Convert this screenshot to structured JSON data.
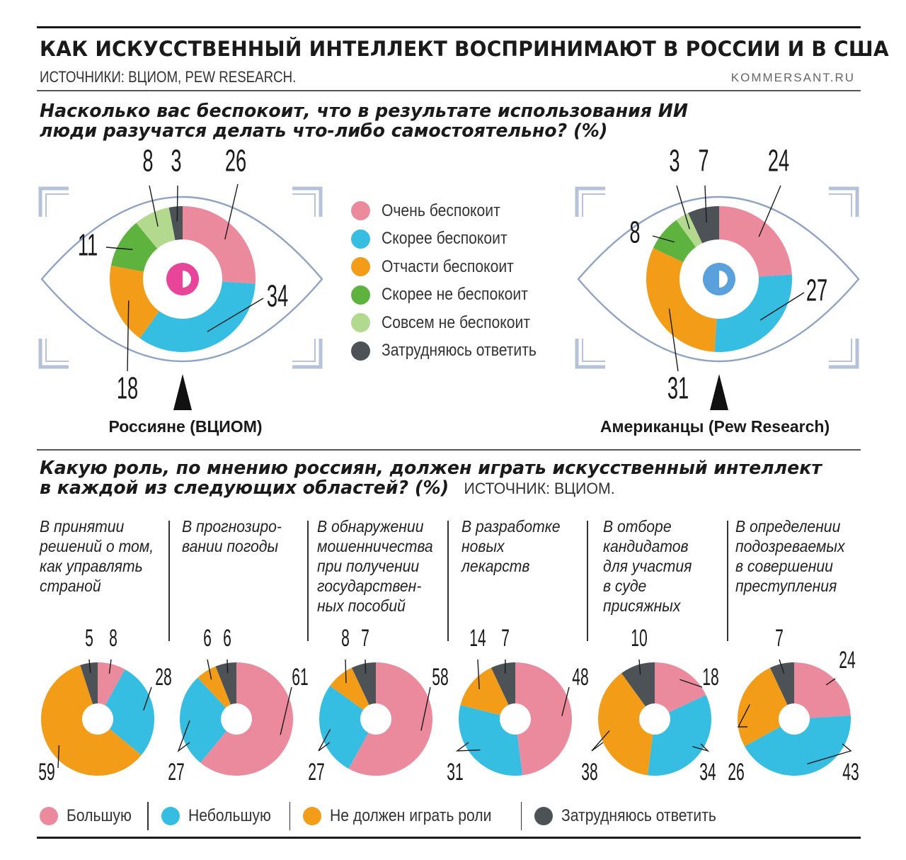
{
  "header": {
    "title": "КАК ИСКУССТВЕННЫЙ ИНТЕЛЛЕКТ ВОСПРИНИМАЮТ В РОССИИ И В США",
    "sources": "ИСТОЧНИКИ: ВЦИОМ, PEW RESEARCH.",
    "site": "KOMMERSANT.RU"
  },
  "section1": {
    "question_line1": "Насколько вас беспокоит, что в результате использования ИИ",
    "question_line2": "люди разучатся делать что-либо самостоятельно? (%)"
  },
  "section2": {
    "question_line1": "Какую роль, по мнению россиян, должен играть искусственный интеллект",
    "question_line2": "в каждой из следующих областей? (%)",
    "source": "ИСТОЧНИК: ВЦИОМ."
  },
  "colors": {
    "pink": "#ea8a9c",
    "blue": "#36bde2",
    "orange": "#f29c17",
    "green": "#5db33d",
    "lightgreen": "#b3d98e",
    "gray": "#4d5257",
    "eye_outline": "#8fa3c4",
    "frame": "#b5c2da",
    "pupil_ru": "#e8449a",
    "pupil_us": "#5aa0dc"
  },
  "legend1": [
    {
      "label": "Очень беспокоит",
      "color": "#ea8a9c"
    },
    {
      "label": "Скорее беспокоит",
      "color": "#36bde2"
    },
    {
      "label": "Отчасти беспокоит",
      "color": "#f29c17"
    },
    {
      "label": "Скорее не беспокоит",
      "color": "#5db33d"
    },
    {
      "label": "Совсем не беспокоит",
      "color": "#b3d98e"
    },
    {
      "label": "Затрудняюсь ответить",
      "color": "#4d5257"
    }
  ],
  "legend2": [
    {
      "label": "Большую",
      "color": "#ea8a9c"
    },
    {
      "label": "Небольшую",
      "color": "#36bde2"
    },
    {
      "label": "Не должен играть роли",
      "color": "#f29c17"
    },
    {
      "label": "Затрудняюсь ответить",
      "color": "#4d5257"
    }
  ],
  "chart_data": [
    {
      "type": "pie",
      "title": "Россияне (ВЦИОМ)",
      "categories": [
        "Очень беспокоит",
        "Скорее беспокоит",
        "Отчасти беспокоит",
        "Скорее не беспокоит",
        "Совсем не беспокоит",
        "Затрудняюсь ответить"
      ],
      "values": [
        26,
        34,
        18,
        11,
        8,
        3
      ]
    },
    {
      "type": "pie",
      "title": "Американцы (Pew Research)",
      "categories": [
        "Очень беспокоит",
        "Скорее беспокоит",
        "Отчасти беспокоит",
        "Скорее не беспокоит",
        "Совсем не беспокоит",
        "Затрудняюсь ответить"
      ],
      "values": [
        24,
        27,
        31,
        8,
        3,
        7
      ]
    },
    {
      "type": "pie",
      "title": "В принятии решений о том, как управлять страной",
      "title_lines": [
        "В принятии",
        "решений о том,",
        "как управлять",
        "страной"
      ],
      "categories": [
        "Большую",
        "Небольшую",
        "Не должен играть роли",
        "Затрудняюсь ответить"
      ],
      "values": [
        8,
        28,
        59,
        5
      ]
    },
    {
      "type": "pie",
      "title": "В прогнозировании погоды",
      "title_lines": [
        "В прогнозиро-",
        "вании погоды"
      ],
      "categories": [
        "Большую",
        "Небольшую",
        "Не должен играть роли",
        "Затрудняюсь ответить"
      ],
      "values": [
        61,
        27,
        6,
        6
      ]
    },
    {
      "type": "pie",
      "title": "В обнаружении мошенничества при получении государственных пособий",
      "title_lines": [
        "В обнаружении",
        "мошенничества",
        "при получении",
        "государствен-",
        "ных пособий"
      ],
      "categories": [
        "Большую",
        "Небольшую",
        "Не должен играть роли",
        "Затрудняюсь ответить"
      ],
      "values": [
        58,
        27,
        8,
        7
      ]
    },
    {
      "type": "pie",
      "title": "В разработке новых лекарств",
      "title_lines": [
        "В разработке",
        "новых",
        "лекарств"
      ],
      "categories": [
        "Большую",
        "Небольшую",
        "Не должен играть роли",
        "Затрудняюсь ответить"
      ],
      "values": [
        48,
        31,
        14,
        7
      ]
    },
    {
      "type": "pie",
      "title": "В отборе кандидатов для участия в суде присяжных",
      "title_lines": [
        "В отборе",
        "кандидатов",
        "для участия",
        "в суде",
        "присяжных"
      ],
      "categories": [
        "Большую",
        "Небольшую",
        "Не должен играть роли",
        "Затрудняюсь ответить"
      ],
      "values": [
        18,
        34,
        38,
        10
      ]
    },
    {
      "type": "pie",
      "title": "В определении подозреваемых в совершении преступления",
      "title_lines": [
        "В определении",
        "подозреваемых",
        "в совершении",
        "преступления"
      ],
      "categories": [
        "Большую",
        "Небольшую",
        "Не должен играть роли",
        "Затрудняюсь ответить"
      ],
      "values": [
        24,
        43,
        26,
        7
      ]
    }
  ]
}
